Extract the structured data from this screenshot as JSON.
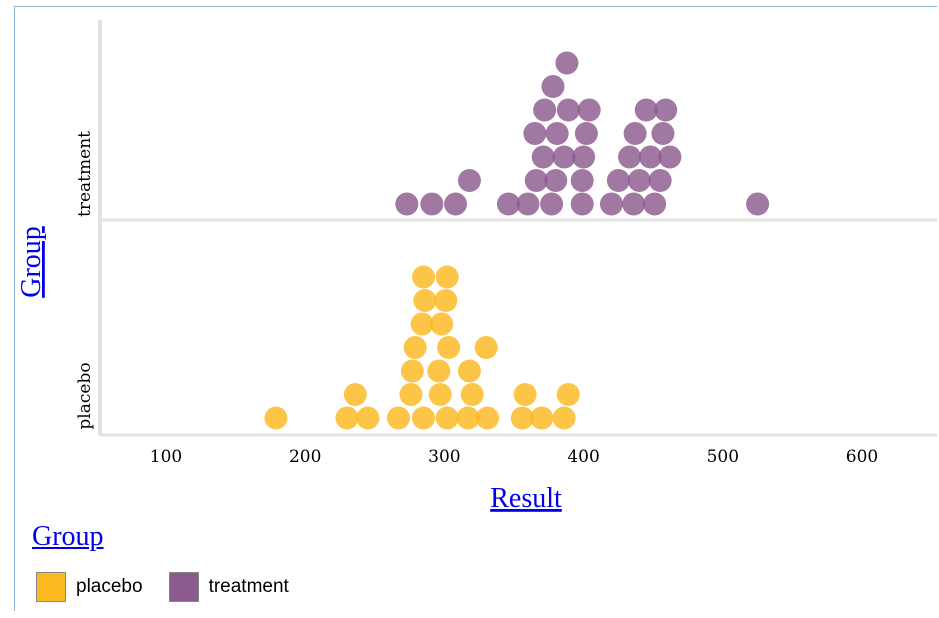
{
  "chart_data": {
    "type": "scatter",
    "subtype": "dot-plot",
    "xlabel": "Result",
    "ylabel": "Group",
    "x_ticks": [
      100,
      200,
      300,
      400,
      500,
      600
    ],
    "xlim": [
      50,
      650
    ],
    "categories": [
      "placebo",
      "treatment"
    ],
    "colors": {
      "placebo": "#fbb81f",
      "treatment": "#8b5a8e"
    },
    "series": [
      {
        "name": "placebo",
        "color": "#fbb81f",
        "values": [
          179,
          230,
          236,
          245,
          267,
          276,
          285,
          297,
          296,
          302,
          303,
          317,
          320,
          318,
          330,
          331,
          356,
          358,
          370,
          386,
          389,
          277,
          279,
          284,
          286,
          298,
          301,
          302,
          285
        ]
      },
      {
        "name": "treatment",
        "color": "#8b5a8e",
        "values": [
          273,
          291,
          308,
          318,
          346,
          360,
          366,
          371,
          365,
          372,
          377,
          378,
          380,
          381,
          386,
          389,
          388,
          399,
          399,
          400,
          402,
          404,
          420,
          425,
          433,
          436,
          437,
          440,
          445,
          448,
          451,
          455,
          457,
          459,
          462,
          525
        ]
      }
    ],
    "legend": {
      "title": "Group",
      "position": "bottom-left",
      "entries": [
        "placebo",
        "treatment"
      ]
    },
    "grid": false
  }
}
